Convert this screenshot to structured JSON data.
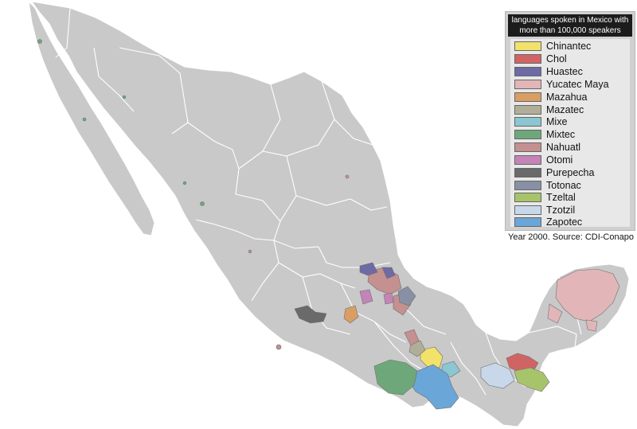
{
  "legend": {
    "title_line1": "languages spoken in Mexico with",
    "title_line2": "more than 100,000 speakers",
    "items": [
      {
        "label": "Chinantec",
        "color": "#f2e26a"
      },
      {
        "label": "Chol",
        "color": "#d06464"
      },
      {
        "label": "Huastec",
        "color": "#6e6aa4"
      },
      {
        "label": "Yucatec Maya",
        "color": "#e2b6b8"
      },
      {
        "label": "Mazahua",
        "color": "#d99e64"
      },
      {
        "label": "Mazatec",
        "color": "#b0ae98"
      },
      {
        "label": "Mixe",
        "color": "#8cc6d0"
      },
      {
        "label": "Mixtec",
        "color": "#6ea87a"
      },
      {
        "label": "Nahuatl",
        "color": "#c49090"
      },
      {
        "label": "Otomi",
        "color": "#c484b8"
      },
      {
        "label": "Purepecha",
        "color": "#6a6a6a"
      },
      {
        "label": "Totonac",
        "color": "#8890a4"
      },
      {
        "label": "Tzeltal",
        "color": "#a8c46a"
      },
      {
        "label": "Tzotzil",
        "color": "#c8d8ea"
      },
      {
        "label": "Zapotec",
        "color": "#6aa6d8"
      }
    ]
  },
  "source": "Year 2000. Source: CDI-Conapo",
  "map": {
    "land_color": "#c9c9c9",
    "border_color": "#ffffff",
    "background_color": "#ffffff"
  }
}
